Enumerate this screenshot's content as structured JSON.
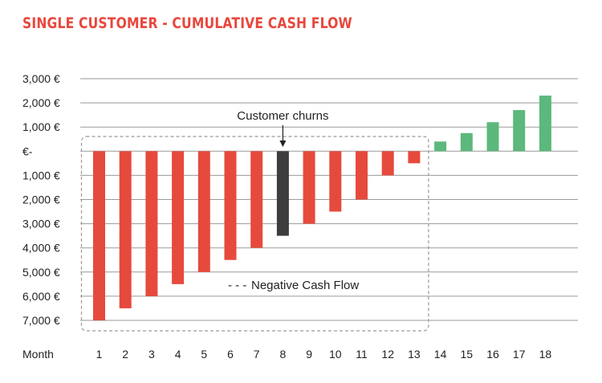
{
  "title": "SINGLE CUSTOMER - CUMULATIVE CASH FLOW",
  "colors": {
    "title": "#e8473c",
    "negative": "#e64a3c",
    "positive": "#5cb87c",
    "churn": "#3d3d3d",
    "grid": "#9a9a9a",
    "box": "#9a9a9a"
  },
  "chart_data": {
    "type": "bar",
    "xlabel": "Month",
    "ylabel": "",
    "categories": [
      "1",
      "2",
      "3",
      "4",
      "5",
      "6",
      "7",
      "8",
      "9",
      "10",
      "11",
      "12",
      "13",
      "14",
      "15",
      "16",
      "17",
      "18"
    ],
    "values": [
      -7000,
      -6500,
      -6000,
      -5500,
      -5000,
      -4500,
      -4000,
      -3500,
      -3000,
      -2500,
      -2000,
      -1000,
      -500,
      400,
      750,
      1200,
      1700,
      2300
    ],
    "ylim": [
      -7000,
      3000
    ],
    "yticks": [
      {
        "value": 3000,
        "label": "3,000 €"
      },
      {
        "value": 2000,
        "label": "2,000 €"
      },
      {
        "value": 1000,
        "label": "1,000 €"
      },
      {
        "value": 0,
        "label": "€-"
      },
      {
        "value": -1000,
        "label": "1,000 €"
      },
      {
        "value": -2000,
        "label": "2,000 €"
      },
      {
        "value": -3000,
        "label": "3,000 €"
      },
      {
        "value": -4000,
        "label": "4,000 €"
      },
      {
        "value": -5000,
        "label": "5,000 €"
      },
      {
        "value": -6000,
        "label": "6,000 €"
      },
      {
        "value": -7000,
        "label": "7,000 €"
      }
    ],
    "grid": true,
    "highlight_category": "8",
    "annotations": {
      "churn_label": "Customer churns",
      "negative_box_label": "Negative Cash Flow",
      "negative_box_legend_symbol": "- - -",
      "negative_box_from_category": "1",
      "negative_box_to_category": "13"
    }
  }
}
